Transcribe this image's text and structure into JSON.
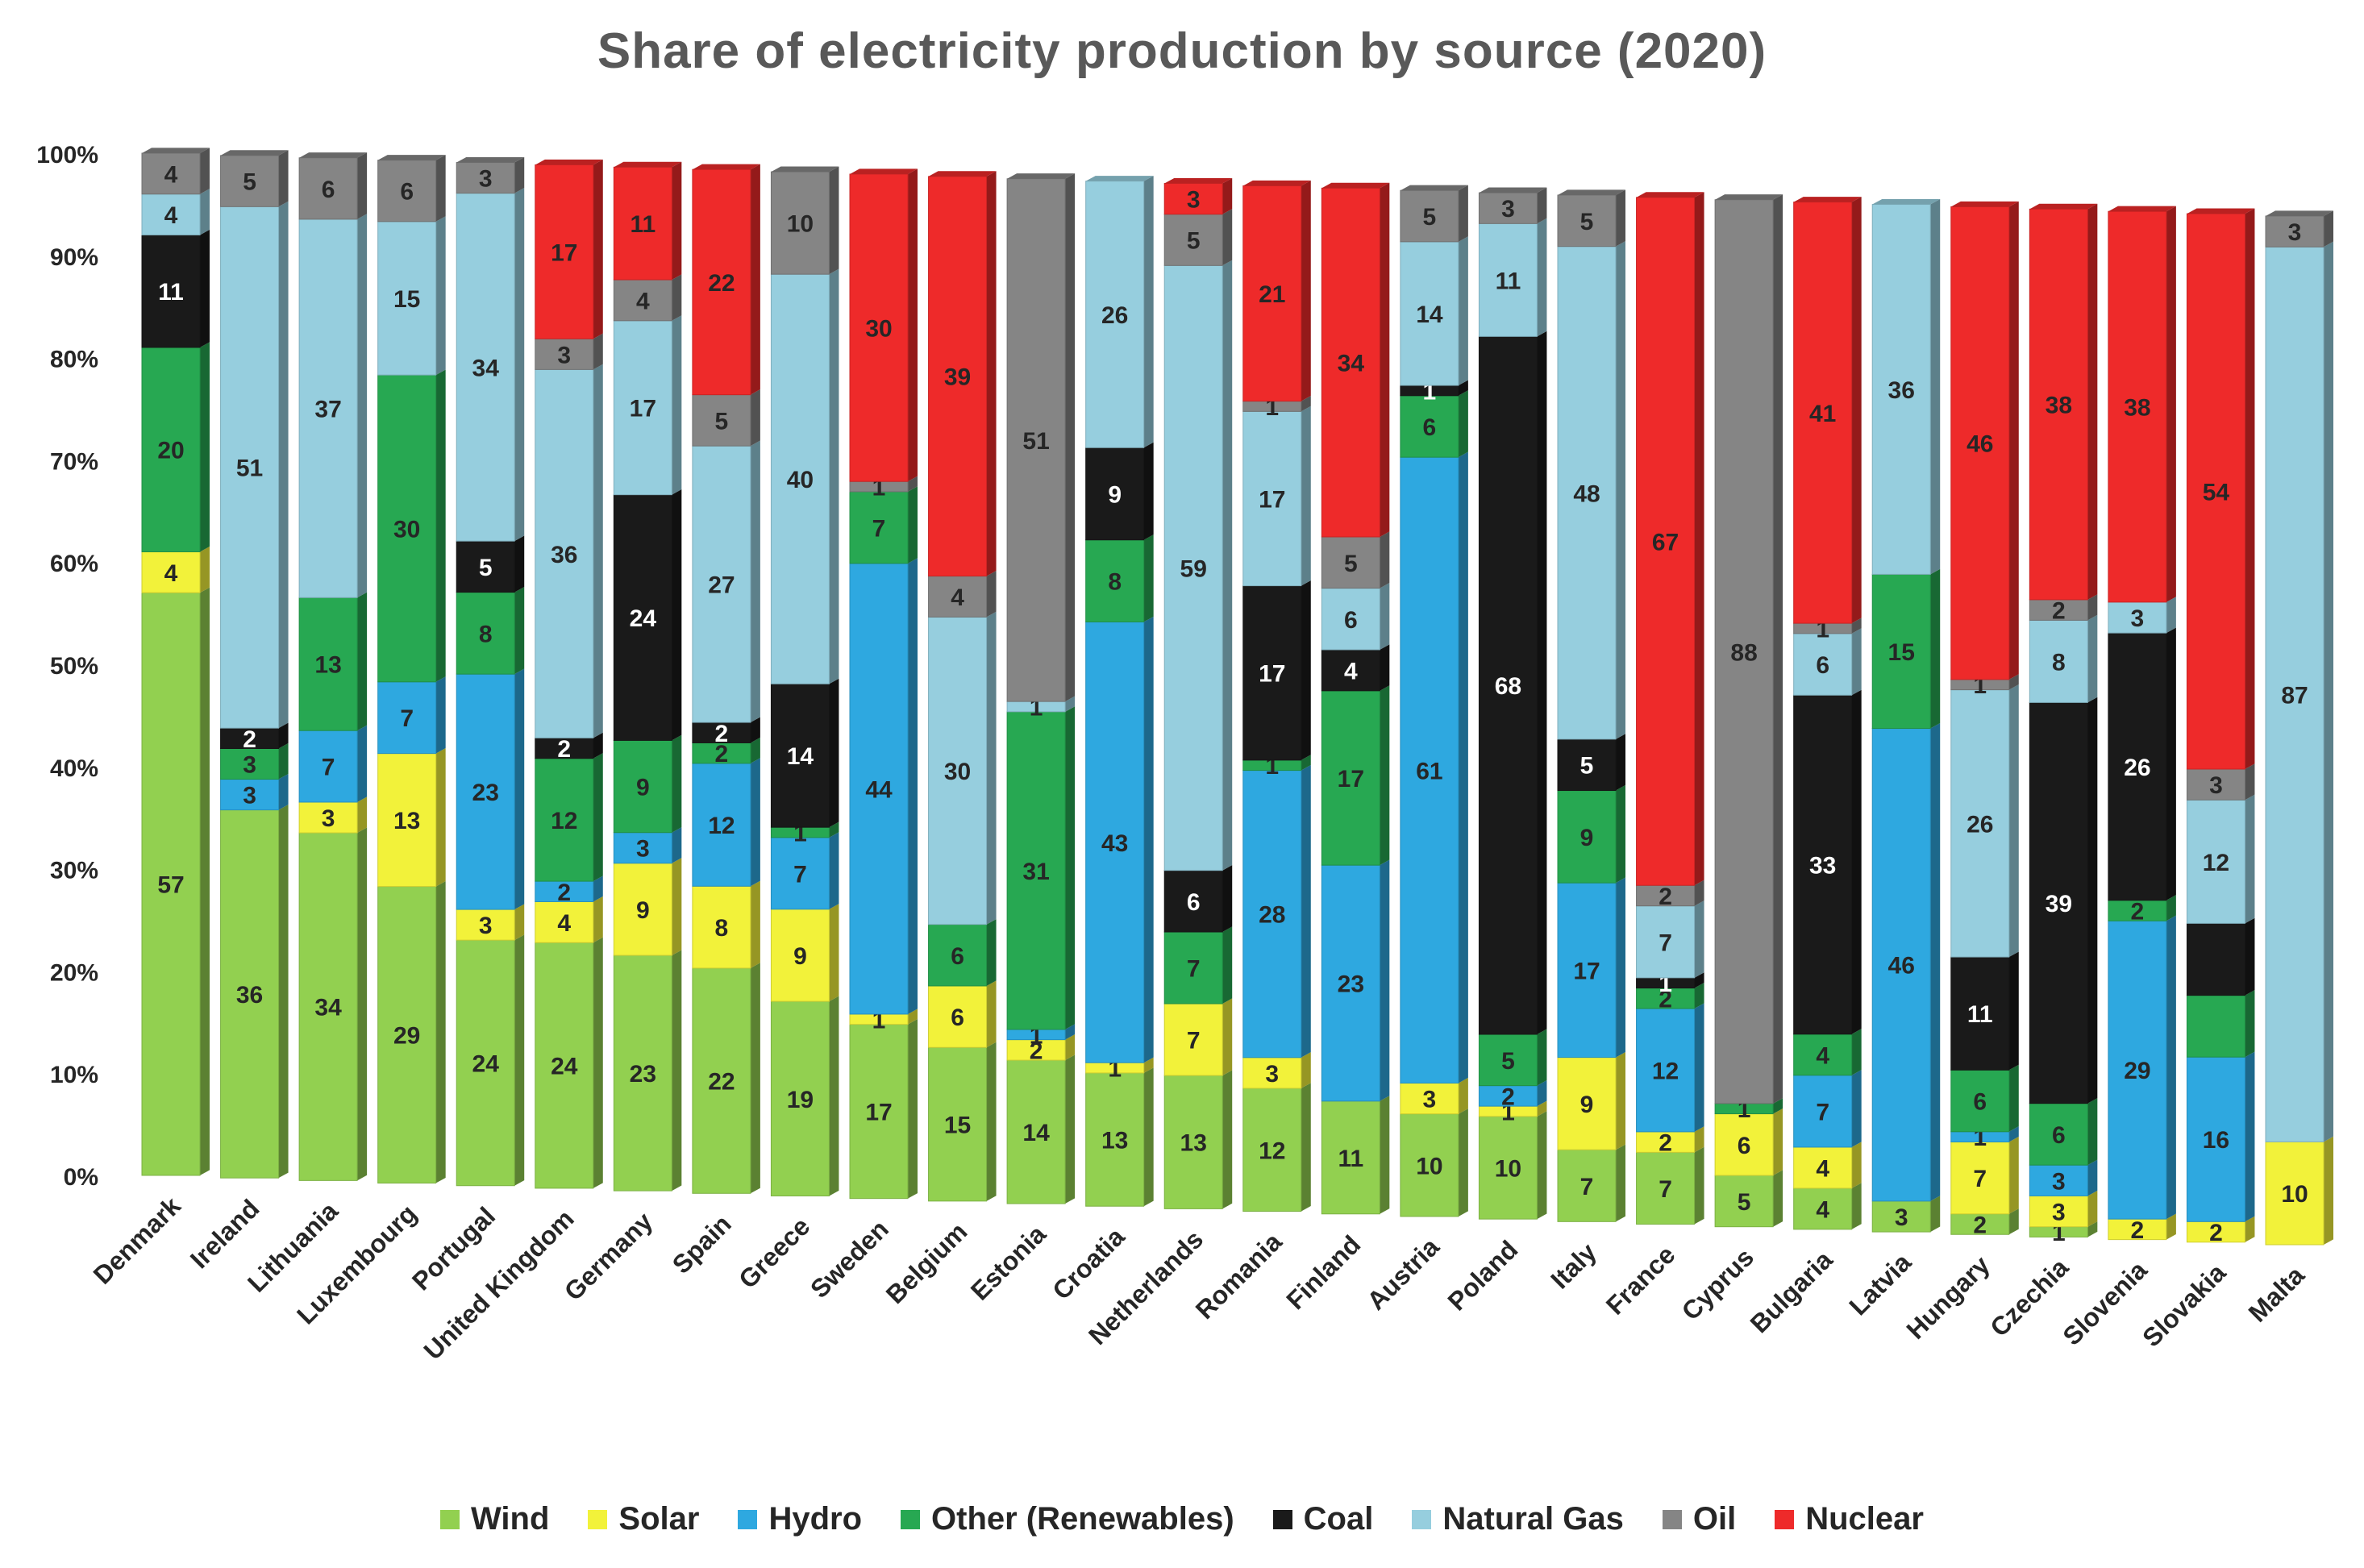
{
  "chart_data": {
    "type": "bar",
    "stacked": true,
    "title": "Share of electricity production by source (2020)",
    "xlabel": "",
    "ylabel": "",
    "ylim": [
      0,
      100
    ],
    "y_tick_labels": [
      "0%",
      "10%",
      "20%",
      "30%",
      "40%",
      "50%",
      "60%",
      "70%",
      "80%",
      "90%",
      "100%"
    ],
    "legend_position": "bottom",
    "categories": [
      "Denmark",
      "Ireland",
      "Lithuania",
      "Luxembourg",
      "Portugal",
      "United Kingdom",
      "Germany",
      "Spain",
      "Greece",
      "Sweden",
      "Belgium",
      "Estonia",
      "Croatia",
      "Netherlands",
      "Romania",
      "Finland",
      "Austria",
      "Poland",
      "Italy",
      "France",
      "Cyprus",
      "Bulgaria",
      "Latvia",
      "Hungary",
      "Czechia",
      "Slovenia",
      "Slovakia",
      "Malta"
    ],
    "series": [
      {
        "name": "Wind",
        "color": "#92d050",
        "values": [
          57,
          36,
          34,
          29,
          24,
          24,
          23,
          22,
          19,
          17,
          15,
          14,
          13,
          13,
          12,
          11,
          10,
          10,
          7,
          7,
          5,
          4,
          3,
          2,
          1,
          0,
          0,
          0
        ],
        "labels": [
          "57",
          "36",
          "34",
          "29",
          "24",
          "24",
          "23",
          "22",
          "19",
          "17",
          "15",
          "14",
          "13",
          "13",
          "12",
          "11",
          "10",
          "10",
          "7",
          "7",
          "5",
          "4",
          "3",
          "2",
          "1",
          "",
          "",
          ""
        ]
      },
      {
        "name": "Solar",
        "color": "#f2f23a",
        "values": [
          4,
          0,
          3,
          13,
          3,
          4,
          9,
          8,
          9,
          1,
          6,
          2,
          1,
          7,
          3,
          0,
          3,
          1,
          9,
          2,
          6,
          4,
          0,
          7,
          3,
          2,
          2,
          10
        ],
        "labels": [
          "4",
          "",
          "3",
          "13",
          "3",
          "4",
          "9",
          "8",
          "9",
          "1",
          "6",
          "2",
          "1",
          "7",
          "3",
          "",
          "3",
          "1",
          "9",
          "2",
          "6",
          "4",
          "",
          "7",
          "3",
          "2",
          "2",
          "10"
        ]
      },
      {
        "name": "Hydro",
        "color": "#2ea8e0",
        "values": [
          0,
          3,
          7,
          7,
          23,
          2,
          3,
          12,
          7,
          44,
          0,
          1,
          43,
          0,
          28,
          23,
          61,
          2,
          17,
          12,
          0,
          7,
          46,
          1,
          3,
          29,
          16,
          0
        ],
        "labels": [
          "",
          "3",
          "7",
          "7",
          "23",
          "2",
          "3",
          "12",
          "7",
          "44",
          "",
          "1",
          "43",
          "",
          "28",
          "23",
          "61",
          "2",
          "17",
          "12",
          "",
          "7",
          "46",
          "1",
          "3",
          "29",
          "16",
          ""
        ]
      },
      {
        "name": "Other (Renewables)",
        "color": "#27a852",
        "values": [
          20,
          3,
          13,
          30,
          8,
          12,
          9,
          2,
          1,
          7,
          6,
          31,
          8,
          7,
          1,
          17,
          6,
          5,
          9,
          2,
          1,
          4,
          15,
          6,
          6,
          2,
          6,
          0
        ],
        "labels": [
          "20",
          "3",
          "13",
          "30",
          "8",
          "12",
          "9",
          "2",
          "1",
          "7",
          "6",
          "31",
          "8",
          "7",
          "1",
          "17",
          "6",
          "5",
          "9",
          "2",
          "1",
          "4",
          "15",
          "6",
          "6",
          "2",
          "",
          ""
        ]
      },
      {
        "name": "Coal",
        "color": "#1a1a1a",
        "values": [
          11,
          2,
          0,
          0,
          5,
          2,
          24,
          2,
          14,
          0,
          0,
          0,
          9,
          6,
          17,
          4,
          1,
          68,
          5,
          1,
          0,
          33,
          0,
          11,
          39,
          26,
          7,
          0
        ],
        "labels": [
          "11",
          "2",
          "",
          "",
          "5",
          "2",
          "24",
          "2",
          "14",
          "",
          "",
          "",
          "9",
          "6",
          "17",
          "4",
          "1",
          "68",
          "5",
          "1",
          "",
          "33",
          "",
          "11",
          "39",
          "26",
          "",
          ""
        ]
      },
      {
        "name": "Natural Gas",
        "color": "#96cede",
        "values": [
          4,
          51,
          37,
          15,
          34,
          36,
          17,
          27,
          40,
          0,
          30,
          1,
          26,
          59,
          17,
          6,
          14,
          11,
          48,
          7,
          0,
          6,
          36,
          26,
          8,
          3,
          12,
          87
        ],
        "labels": [
          "4",
          "51",
          "37",
          "15",
          "34",
          "36",
          "17",
          "27",
          "40",
          "",
          "30",
          "1",
          "26",
          "59",
          "17",
          "6",
          "14",
          "11",
          "48",
          "7",
          "",
          "6",
          "36",
          "26",
          "8",
          "3",
          "12",
          "87"
        ]
      },
      {
        "name": "Oil",
        "color": "#858585",
        "values": [
          4,
          5,
          6,
          6,
          3,
          3,
          4,
          5,
          10,
          1,
          4,
          51,
          0,
          5,
          1,
          5,
          5,
          3,
          5,
          2,
          88,
          1,
          0,
          1,
          2,
          0,
          3,
          3
        ],
        "labels": [
          "4",
          "5",
          "6",
          "6",
          "3",
          "3",
          "4",
          "5",
          "10",
          "1",
          "4",
          "51",
          "",
          "5",
          "1",
          "5",
          "5",
          "3",
          "5",
          "2",
          "88",
          "1",
          "",
          "1",
          "2",
          "",
          "3",
          "3"
        ]
      },
      {
        "name": "Nuclear",
        "color": "#ee2a2a",
        "values": [
          0,
          0,
          0,
          0,
          0,
          17,
          11,
          22,
          0,
          30,
          39,
          0,
          0,
          3,
          21,
          34,
          0,
          0,
          0,
          67,
          0,
          41,
          0,
          46,
          38,
          38,
          54,
          0
        ],
        "labels": [
          "",
          "",
          "",
          "",
          "",
          "17",
          "11",
          "22",
          "",
          "30",
          "39",
          "",
          "",
          "3",
          "21",
          "34",
          "",
          "",
          "",
          "67",
          "",
          "41",
          "",
          "46",
          "38",
          "38",
          "54",
          ""
        ]
      }
    ]
  }
}
